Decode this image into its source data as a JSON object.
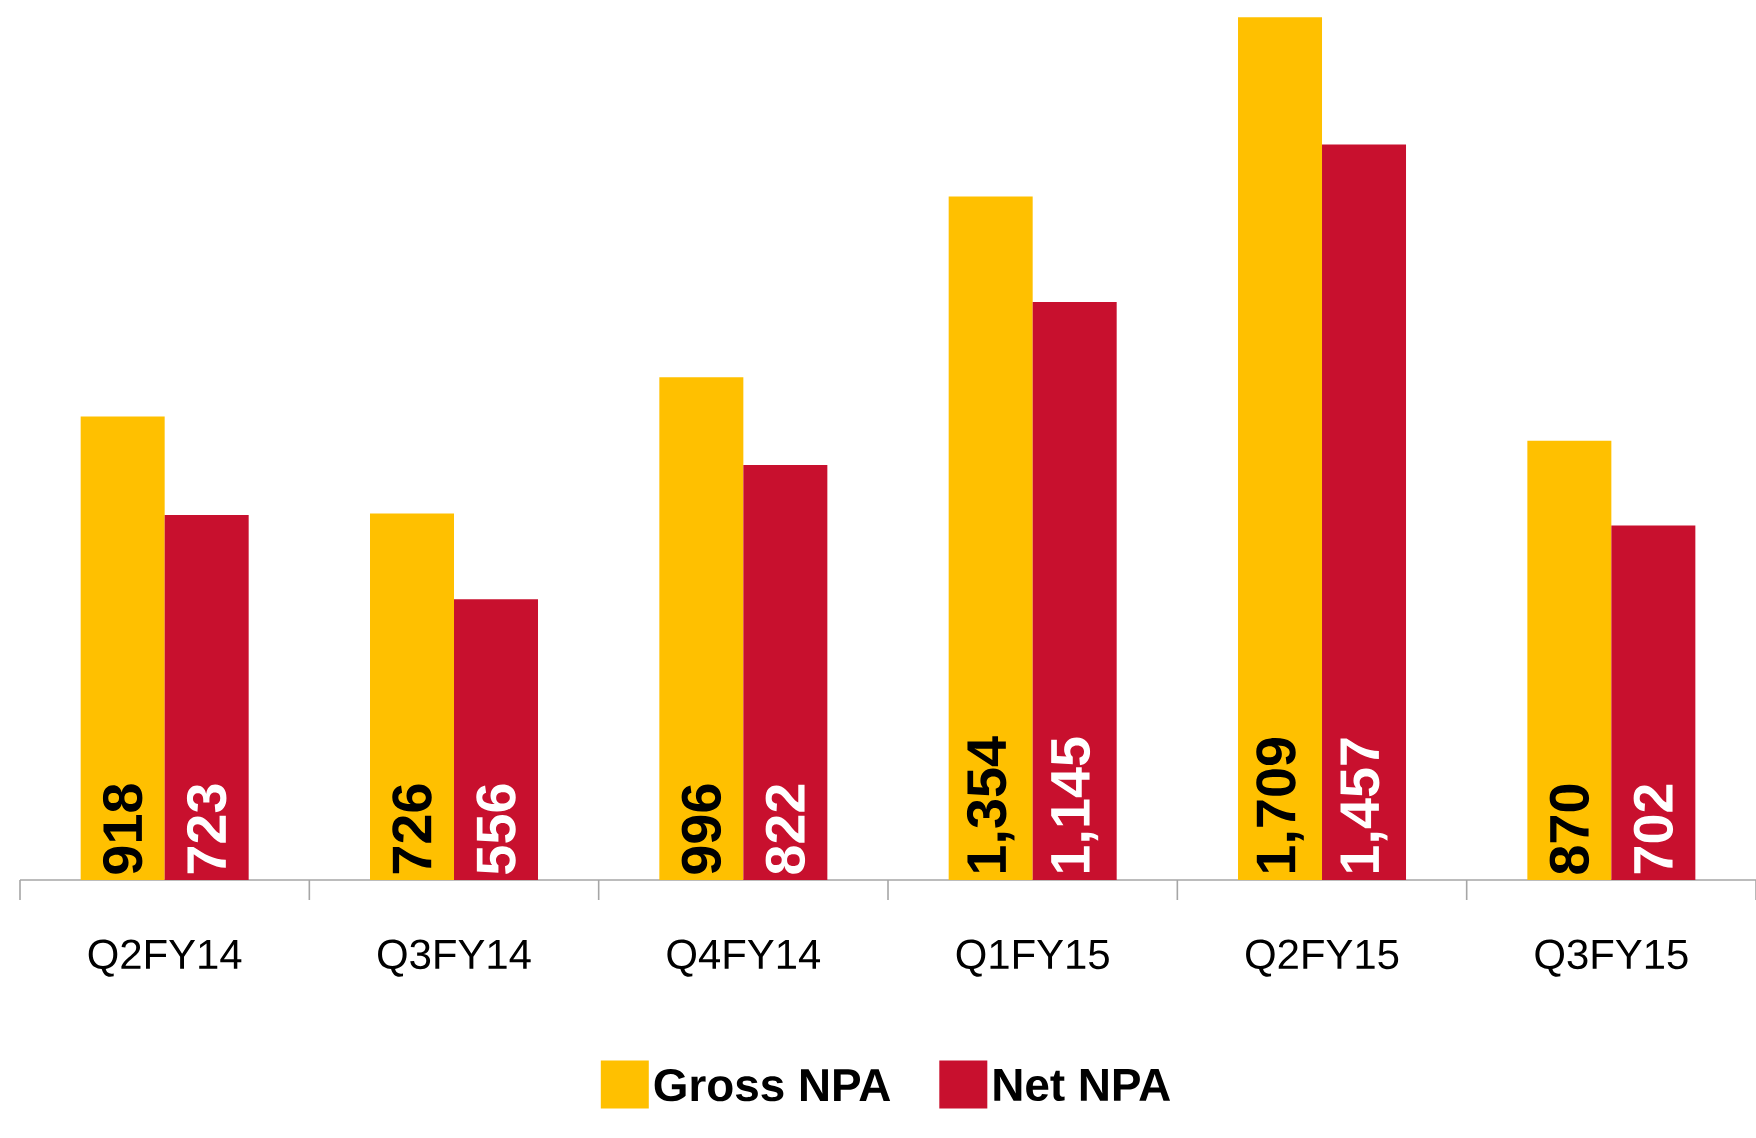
{
  "chart_data": {
    "type": "bar",
    "categories": [
      "Q2FY14",
      "Q3FY14",
      "Q4FY14",
      "Q1FY15",
      "Q2FY15",
      "Q3FY15"
    ],
    "series": [
      {
        "name": "Gross NPA",
        "color": "#ffc000",
        "values": [
          918,
          726,
          996,
          1354,
          1709,
          870
        ],
        "value_labels": [
          "918",
          "726",
          "996",
          "1,354",
          "1,709",
          "870"
        ]
      },
      {
        "name": "Net NPA",
        "color": "#c8102e",
        "values": [
          723,
          556,
          822,
          1145,
          1457,
          702
        ],
        "value_labels": [
          "723",
          "556",
          "822",
          "1,145",
          "1,457",
          "702"
        ]
      }
    ],
    "legend": "bottom"
  }
}
